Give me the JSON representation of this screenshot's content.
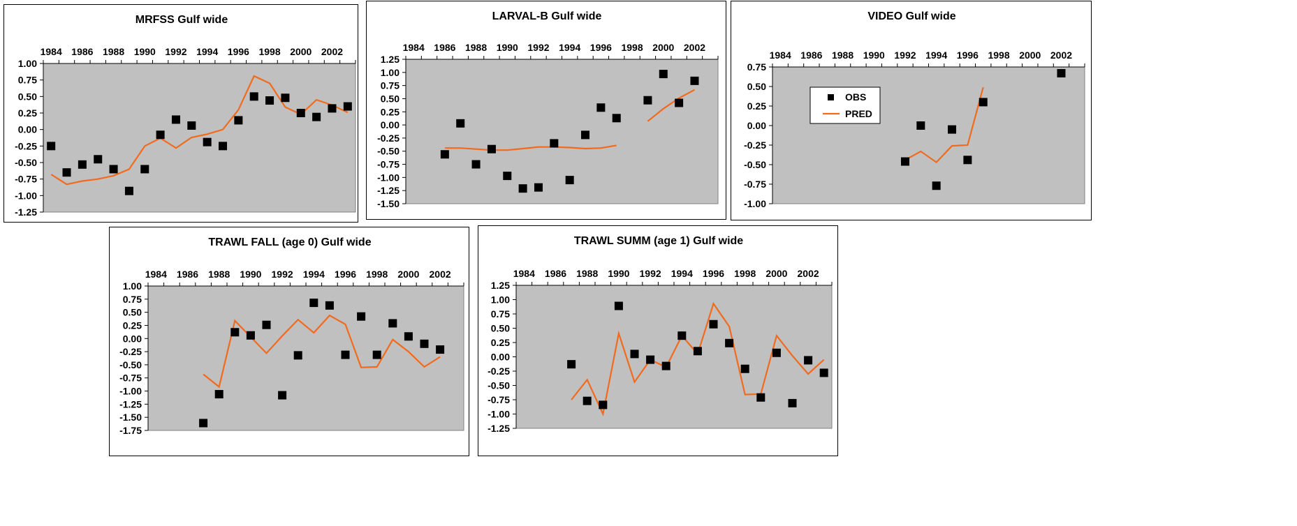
{
  "chart_data": [
    {
      "type": "scatter",
      "title": "MRFSS Gulf wide",
      "x_ticks": [
        "1984",
        "1986",
        "1988",
        "1990",
        "1992",
        "1994",
        "1996",
        "1998",
        "2000",
        "2002"
      ],
      "y_ticks": [
        "1.00",
        "0.75",
        "0.50",
        "0.25",
        "0.00",
        "-0.25",
        "-0.50",
        "-0.75",
        "-1.00",
        "-1.25"
      ],
      "xlim": [
        1983.5,
        2003.5
      ],
      "ylim": [
        -1.25,
        1.0
      ],
      "series": [
        {
          "name": "OBS",
          "marker": "square",
          "color": "#000000",
          "x": [
            1984,
            1985,
            1986,
            1987,
            1988,
            1989,
            1990,
            1991,
            1992,
            1993,
            1994,
            1995,
            1996,
            1997,
            1998,
            1999,
            2000,
            2001,
            2002,
            2003
          ],
          "y": [
            -0.25,
            -0.65,
            -0.53,
            -0.45,
            -0.6,
            -0.93,
            -0.6,
            -0.08,
            0.15,
            0.06,
            -0.19,
            -0.25,
            0.14,
            0.5,
            0.44,
            0.48,
            0.25,
            0.19,
            0.32,
            0.35
          ]
        },
        {
          "name": "PRED",
          "marker": "line",
          "color": "#f26a1b",
          "x": [
            1984,
            1985,
            1986,
            1987,
            1988,
            1989,
            1990,
            1991,
            1992,
            1993,
            1994,
            1995,
            1996,
            1997,
            1998,
            1999,
            2000,
            2001,
            2002,
            2003
          ],
          "y": [
            -0.68,
            -0.83,
            -0.78,
            -0.75,
            -0.7,
            -0.6,
            -0.25,
            -0.13,
            -0.28,
            -0.12,
            -0.07,
            0.0,
            0.3,
            0.81,
            0.7,
            0.34,
            0.23,
            0.45,
            0.37,
            0.26
          ]
        }
      ]
    },
    {
      "type": "scatter",
      "title": "LARVAL-B Gulf wide",
      "x_ticks": [
        "1984",
        "1986",
        "1988",
        "1990",
        "1992",
        "1994",
        "1996",
        "1998",
        "2000",
        "2002"
      ],
      "y_ticks": [
        "1.25",
        "1.00",
        "0.75",
        "0.50",
        "0.25",
        "0.00",
        "-0.25",
        "-0.50",
        "-0.75",
        "-1.00",
        "-1.25",
        "-1.50"
      ],
      "xlim": [
        1983.5,
        2003.5
      ],
      "ylim": [
        -1.5,
        1.25
      ],
      "series": [
        {
          "name": "OBS",
          "marker": "square",
          "color": "#000000",
          "x": [
            1986,
            1987,
            1988,
            1989,
            1990,
            1991,
            1992,
            1993,
            1994,
            1995,
            1996,
            1997,
            1999,
            2000,
            2001,
            2002
          ],
          "y": [
            -0.56,
            0.03,
            -0.75,
            -0.46,
            -0.97,
            -1.21,
            -1.19,
            -0.35,
            -1.05,
            -0.19,
            0.33,
            0.13,
            0.47,
            0.97,
            0.42,
            0.84
          ]
        },
        {
          "name": "PRED",
          "marker": "line",
          "color": "#f26a1b",
          "segments": [
            {
              "x": [
                1986,
                1987,
                1988,
                1989,
                1990,
                1991,
                1992,
                1993,
                1994,
                1995,
                1996,
                1997
              ],
              "y": [
                -0.44,
                -0.44,
                -0.46,
                -0.48,
                -0.48,
                -0.45,
                -0.42,
                -0.42,
                -0.43,
                -0.45,
                -0.44,
                -0.39
              ]
            },
            {
              "x": [
                1999,
                2000,
                2001,
                2002
              ],
              "y": [
                0.07,
                0.31,
                0.51,
                0.67
              ]
            }
          ]
        }
      ]
    },
    {
      "type": "scatter",
      "title": "VIDEO Gulf wide",
      "x_ticks": [
        "1984",
        "1986",
        "1988",
        "1990",
        "1992",
        "1994",
        "1996",
        "1998",
        "2000",
        "2002"
      ],
      "y_ticks": [
        "0.75",
        "0.50",
        "0.25",
        "0.00",
        "-0.25",
        "-0.50",
        "-0.75",
        "-1.00"
      ],
      "xlim": [
        1983.5,
        2003.5
      ],
      "ylim": [
        -1.0,
        0.75
      ],
      "legend": [
        "OBS",
        "PRED"
      ],
      "legend_position": "upper-left",
      "series": [
        {
          "name": "OBS",
          "marker": "square",
          "color": "#000000",
          "x": [
            1992,
            1993,
            1994,
            1995,
            1996,
            1997,
            2002
          ],
          "y": [
            -0.46,
            0.0,
            -0.77,
            -0.05,
            -0.44,
            0.3,
            0.67
          ]
        },
        {
          "name": "PRED",
          "marker": "line",
          "color": "#f26a1b",
          "x": [
            1992,
            1993,
            1994,
            1995,
            1996,
            1997
          ],
          "y": [
            -0.44,
            -0.33,
            -0.47,
            -0.26,
            -0.25,
            0.49
          ]
        }
      ]
    },
    {
      "type": "scatter",
      "title": "TRAWL FALL (age 0) Gulf wide",
      "x_ticks": [
        "1984",
        "1986",
        "1988",
        "1990",
        "1992",
        "1994",
        "1996",
        "1998",
        "2000",
        "2002"
      ],
      "y_ticks": [
        "1.00",
        "0.75",
        "0.50",
        "0.25",
        "0.00",
        "-0.25",
        "-0.50",
        "-0.75",
        "-1.00",
        "-1.25",
        "-1.50",
        "-1.75"
      ],
      "xlim": [
        1983.5,
        2003.5
      ],
      "ylim": [
        -1.75,
        1.0
      ],
      "series": [
        {
          "name": "OBS",
          "marker": "square",
          "color": "#000000",
          "x": [
            1987,
            1988,
            1989,
            1990,
            1991,
            1992,
            1993,
            1994,
            1995,
            1996,
            1997,
            1998,
            1999,
            2000,
            2001,
            2002
          ],
          "y": [
            -1.61,
            -1.06,
            0.12,
            0.06,
            0.26,
            -1.08,
            -0.32,
            0.68,
            0.63,
            -0.31,
            0.42,
            -0.31,
            0.29,
            0.04,
            -0.1,
            -0.21
          ]
        },
        {
          "name": "PRED",
          "marker": "line",
          "color": "#f26a1b",
          "x": [
            1987,
            1988,
            1989,
            1990,
            1991,
            1992,
            1993,
            1994,
            1995,
            1996,
            1997,
            1998,
            1999,
            2000,
            2001,
            2002
          ],
          "y": [
            -0.68,
            -0.92,
            0.34,
            0.03,
            -0.28,
            0.05,
            0.36,
            0.11,
            0.44,
            0.27,
            -0.55,
            -0.54,
            -0.02,
            -0.25,
            -0.54,
            -0.35
          ]
        }
      ]
    },
    {
      "type": "scatter",
      "title": "TRAWL SUMM (age 1) Gulf wide",
      "x_ticks": [
        "1984",
        "1986",
        "1988",
        "1990",
        "1992",
        "1994",
        "1996",
        "1998",
        "2000",
        "2002"
      ],
      "y_ticks": [
        "1.25",
        "1.00",
        "0.75",
        "0.50",
        "0.25",
        "0.00",
        "-0.25",
        "-0.50",
        "-0.75",
        "-1.00",
        "-1.25"
      ],
      "xlim": [
        1983.5,
        2003.5
      ],
      "ylim": [
        -1.25,
        1.25
      ],
      "series": [
        {
          "name": "OBS",
          "marker": "square",
          "color": "#000000",
          "x": [
            1987,
            1988,
            1989,
            1990,
            1991,
            1992,
            1993,
            1994,
            1995,
            1996,
            1997,
            1998,
            1999,
            2000,
            2001,
            2002,
            2003
          ],
          "y": [
            -0.13,
            -0.77,
            -0.84,
            0.89,
            0.05,
            -0.05,
            -0.16,
            0.37,
            0.1,
            0.57,
            0.24,
            -0.21,
            -0.71,
            0.07,
            -0.81,
            -0.06,
            -0.28
          ]
        },
        {
          "name": "PRED",
          "marker": "line",
          "color": "#f26a1b",
          "x": [
            1987,
            1988,
            1989,
            1990,
            1991,
            1992,
            1993,
            1994,
            1995,
            1996,
            1997,
            1998,
            1999,
            2000,
            2001,
            2002,
            2003
          ],
          "y": [
            -0.75,
            -0.4,
            -1.0,
            0.41,
            -0.44,
            -0.05,
            -0.18,
            0.37,
            0.05,
            0.93,
            0.53,
            -0.66,
            -0.65,
            0.37,
            0.02,
            -0.3,
            -0.05
          ]
        }
      ]
    }
  ]
}
